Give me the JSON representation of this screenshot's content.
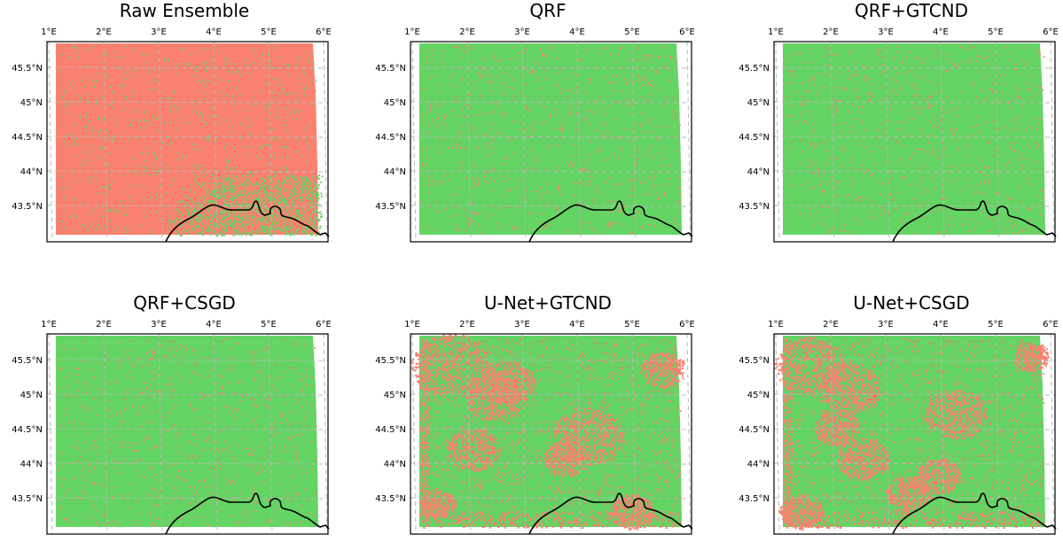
{
  "colors": {
    "agree": "#64d464",
    "disagree": "#fa8070",
    "coast": "#000000",
    "grid": "#b9b9b9"
  },
  "chart_data": [
    {
      "type": "heatmap",
      "title": "Raw Ensemble",
      "xlabel": "",
      "ylabel": "",
      "xlim": [
        1,
        6
      ],
      "ylim": [
        43,
        45.9
      ],
      "xticks": [
        "1°E",
        "2°E",
        "3°E",
        "4°E",
        "5°E",
        "6°E"
      ],
      "yticks": [
        "43.5°N",
        "44°N",
        "44.5°N",
        "45°N",
        "45.5°N"
      ],
      "grid": true,
      "dominant_class": "disagree",
      "green_fraction_estimate": 0.1
    },
    {
      "type": "heatmap",
      "title": "QRF",
      "xlabel": "",
      "ylabel": "",
      "xlim": [
        1,
        6
      ],
      "ylim": [
        43,
        45.9
      ],
      "xticks": [
        "1°E",
        "2°E",
        "3°E",
        "4°E",
        "5°E",
        "6°E"
      ],
      "yticks": [
        "43.5°N",
        "44°N",
        "44.5°N",
        "45°N",
        "45.5°N"
      ],
      "grid": true,
      "dominant_class": "agree",
      "green_fraction_estimate": 0.93
    },
    {
      "type": "heatmap",
      "title": "QRF+GTCND",
      "xlabel": "",
      "ylabel": "",
      "xlim": [
        1,
        6
      ],
      "ylim": [
        43,
        45.9
      ],
      "xticks": [
        "1°E",
        "2°E",
        "3°E",
        "4°E",
        "5°E",
        "6°E"
      ],
      "yticks": [
        "43.5°N",
        "44°N",
        "44.5°N",
        "45°N",
        "45.5°N"
      ],
      "grid": true,
      "dominant_class": "agree",
      "green_fraction_estimate": 0.95
    },
    {
      "type": "heatmap",
      "title": "QRF+CSGD",
      "xlabel": "",
      "ylabel": "",
      "xlim": [
        1,
        6
      ],
      "ylim": [
        43,
        45.9
      ],
      "xticks": [
        "1°E",
        "2°E",
        "3°E",
        "4°E",
        "5°E",
        "6°E"
      ],
      "yticks": [
        "43.5°N",
        "44°N",
        "44.5°N",
        "45°N",
        "45.5°N"
      ],
      "grid": true,
      "dominant_class": "agree",
      "green_fraction_estimate": 0.93
    },
    {
      "type": "heatmap",
      "title": "U-Net+GTCND",
      "xlabel": "",
      "ylabel": "",
      "xlim": [
        1,
        6
      ],
      "ylim": [
        43,
        45.9
      ],
      "xticks": [
        "1°E",
        "2°E",
        "3°E",
        "4°E",
        "5°E",
        "6°E"
      ],
      "yticks": [
        "43.5°N",
        "44°N",
        "44.5°N",
        "45°N",
        "45.5°N"
      ],
      "grid": true,
      "dominant_class": "agree",
      "green_fraction_estimate": 0.72
    },
    {
      "type": "heatmap",
      "title": "U-Net+CSGD",
      "xlabel": "",
      "ylabel": "",
      "xlim": [
        1,
        6
      ],
      "ylim": [
        43,
        45.9
      ],
      "xticks": [
        "1°E",
        "2°E",
        "3°E",
        "4°E",
        "5°E",
        "6°E"
      ],
      "yticks": [
        "43.5°N",
        "44°N",
        "44.5°N",
        "45°N",
        "45.5°N"
      ],
      "grid": true,
      "dominant_class": "agree",
      "green_fraction_estimate": 0.74
    }
  ]
}
